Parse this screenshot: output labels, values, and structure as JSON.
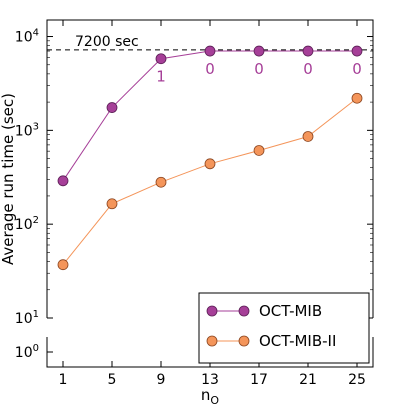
{
  "chart_data": {
    "type": "line",
    "x": [
      1,
      5,
      9,
      13,
      17,
      21,
      25
    ],
    "xticks": [
      "1",
      "5",
      "9",
      "13",
      "17",
      "21",
      "25"
    ],
    "xlabel_main": "n",
    "xlabel_sub": "O",
    "ylabel": "Average run time (sec)",
    "yscale": "log",
    "ylim": [
      10,
      15000
    ],
    "ylim_lower_panel": [
      0.5,
      2
    ],
    "yticks_main": [
      {
        "base": "10",
        "exp": "1",
        "value": 10
      },
      {
        "base": "10",
        "exp": "2",
        "value": 100
      },
      {
        "base": "10",
        "exp": "3",
        "value": 1000
      },
      {
        "base": "10",
        "exp": "4",
        "value": 10000
      }
    ],
    "yticks_lower": [
      {
        "base": "10",
        "exp": "0",
        "value": 1
      }
    ],
    "series": [
      {
        "name": "OCT-MIB",
        "color": "#a63f98",
        "edge": "#5a1e55",
        "values": [
          290,
          1750,
          5800,
          7000,
          7000,
          7000,
          7000
        ]
      },
      {
        "name": "OCT-MIB-II",
        "color": "#f4955a",
        "edge": "#8a4520",
        "values": [
          37,
          165,
          280,
          440,
          610,
          860,
          2200
        ]
      }
    ],
    "reference_line": {
      "value": 7200,
      "label": "7200 sec"
    },
    "annotations": [
      {
        "x": 9,
        "text": "1"
      },
      {
        "x": 13,
        "text": "0"
      },
      {
        "x": 17,
        "text": "0"
      },
      {
        "x": 21,
        "text": "0"
      },
      {
        "x": 25,
        "text": "0"
      }
    ],
    "annotation_color": "#a63f98",
    "legend_position": "lower-right",
    "grid": false
  }
}
